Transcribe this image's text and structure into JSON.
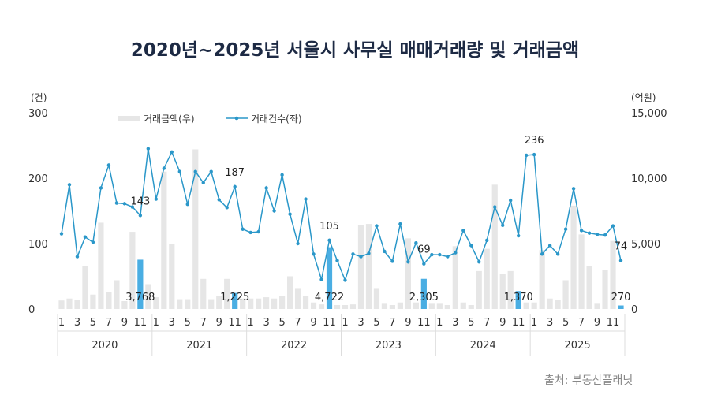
{
  "chart_data": {
    "type": "bar+line",
    "title": "2020년~2025년 서울시 사무실 매매거래량 및 거래금액",
    "source": "출처: 부동산플래닛",
    "left_axis": {
      "unit": "(건)",
      "ticks": [
        "300",
        "200",
        "100",
        "0"
      ],
      "range": [
        0,
        300
      ]
    },
    "right_axis": {
      "unit": "(억원)",
      "ticks": [
        "15,000",
        "10,000",
        "5,000",
        "0"
      ],
      "range": [
        0,
        15000
      ]
    },
    "legend": [
      "거래금액(우)",
      "거래건수(좌)"
    ],
    "years": [
      "2020",
      "2021",
      "2022",
      "2023",
      "2024",
      "2025"
    ],
    "month_labels": [
      "1",
      "3",
      "5",
      "7",
      "9",
      "11"
    ],
    "colors": {
      "bar": "#e6e6e6",
      "bar_highlight": "#4aaee3",
      "line": "#2a97c9",
      "text": "#1d2a44",
      "grid": "#dddddd"
    },
    "series": [
      {
        "name": "거래건수(좌)",
        "axis": "left",
        "type": "line",
        "values": [
          115,
          190,
          80,
          110,
          102,
          185,
          220,
          162,
          161,
          156,
          143,
          245,
          168,
          215,
          240,
          210,
          160,
          210,
          193,
          210,
          167,
          155,
          187,
          122,
          117,
          118,
          185,
          150,
          205,
          145,
          100,
          168,
          84,
          45,
          105,
          74,
          44,
          84,
          80,
          85,
          127,
          88,
          73,
          130,
          72,
          101,
          69,
          83,
          83,
          80,
          86,
          120,
          97,
          72,
          105,
          156,
          128,
          166,
          112,
          235,
          236,
          84,
          97,
          84,
          122,
          184,
          120,
          116,
          114,
          113,
          127,
          74
        ]
      },
      {
        "name": "거래금액(우)",
        "axis": "right",
        "type": "bar",
        "values": [
          650,
          800,
          700,
          3300,
          1100,
          6600,
          1300,
          2200,
          600,
          5900,
          3768,
          1900,
          900,
          10500,
          5000,
          750,
          750,
          12200,
          2300,
          750,
          1000,
          2300,
          1225,
          800,
          800,
          800,
          900,
          800,
          1000,
          2500,
          1600,
          1000,
          500,
          350,
          4722,
          300,
          300,
          350,
          6400,
          6500,
          1600,
          400,
          300,
          500,
          5400,
          500,
          2305,
          400,
          400,
          300,
          4800,
          500,
          300,
          2900,
          4600,
          9500,
          2700,
          2900,
          1370,
          500,
          500,
          4500,
          800,
          700,
          2200,
          7900,
          5700,
          3300,
          400,
          3000,
          5200,
          270
        ]
      }
    ],
    "highlighted_bars": [
      10,
      22,
      34,
      46,
      58,
      71
    ],
    "bar_labels": [
      {
        "index": 10,
        "text": "3,768"
      },
      {
        "index": 22,
        "text": "1,225"
      },
      {
        "index": 34,
        "text": "4,722"
      },
      {
        "index": 46,
        "text": "2,305"
      },
      {
        "index": 58,
        "text": "1,370"
      },
      {
        "index": 71,
        "text": "270"
      }
    ],
    "line_labels": [
      {
        "index": 10,
        "text": "143"
      },
      {
        "index": 22,
        "text": "187"
      },
      {
        "index": 34,
        "text": "105"
      },
      {
        "index": 46,
        "text": "69"
      },
      {
        "index": 60,
        "text": "236"
      },
      {
        "index": 71,
        "text": "74"
      }
    ]
  }
}
